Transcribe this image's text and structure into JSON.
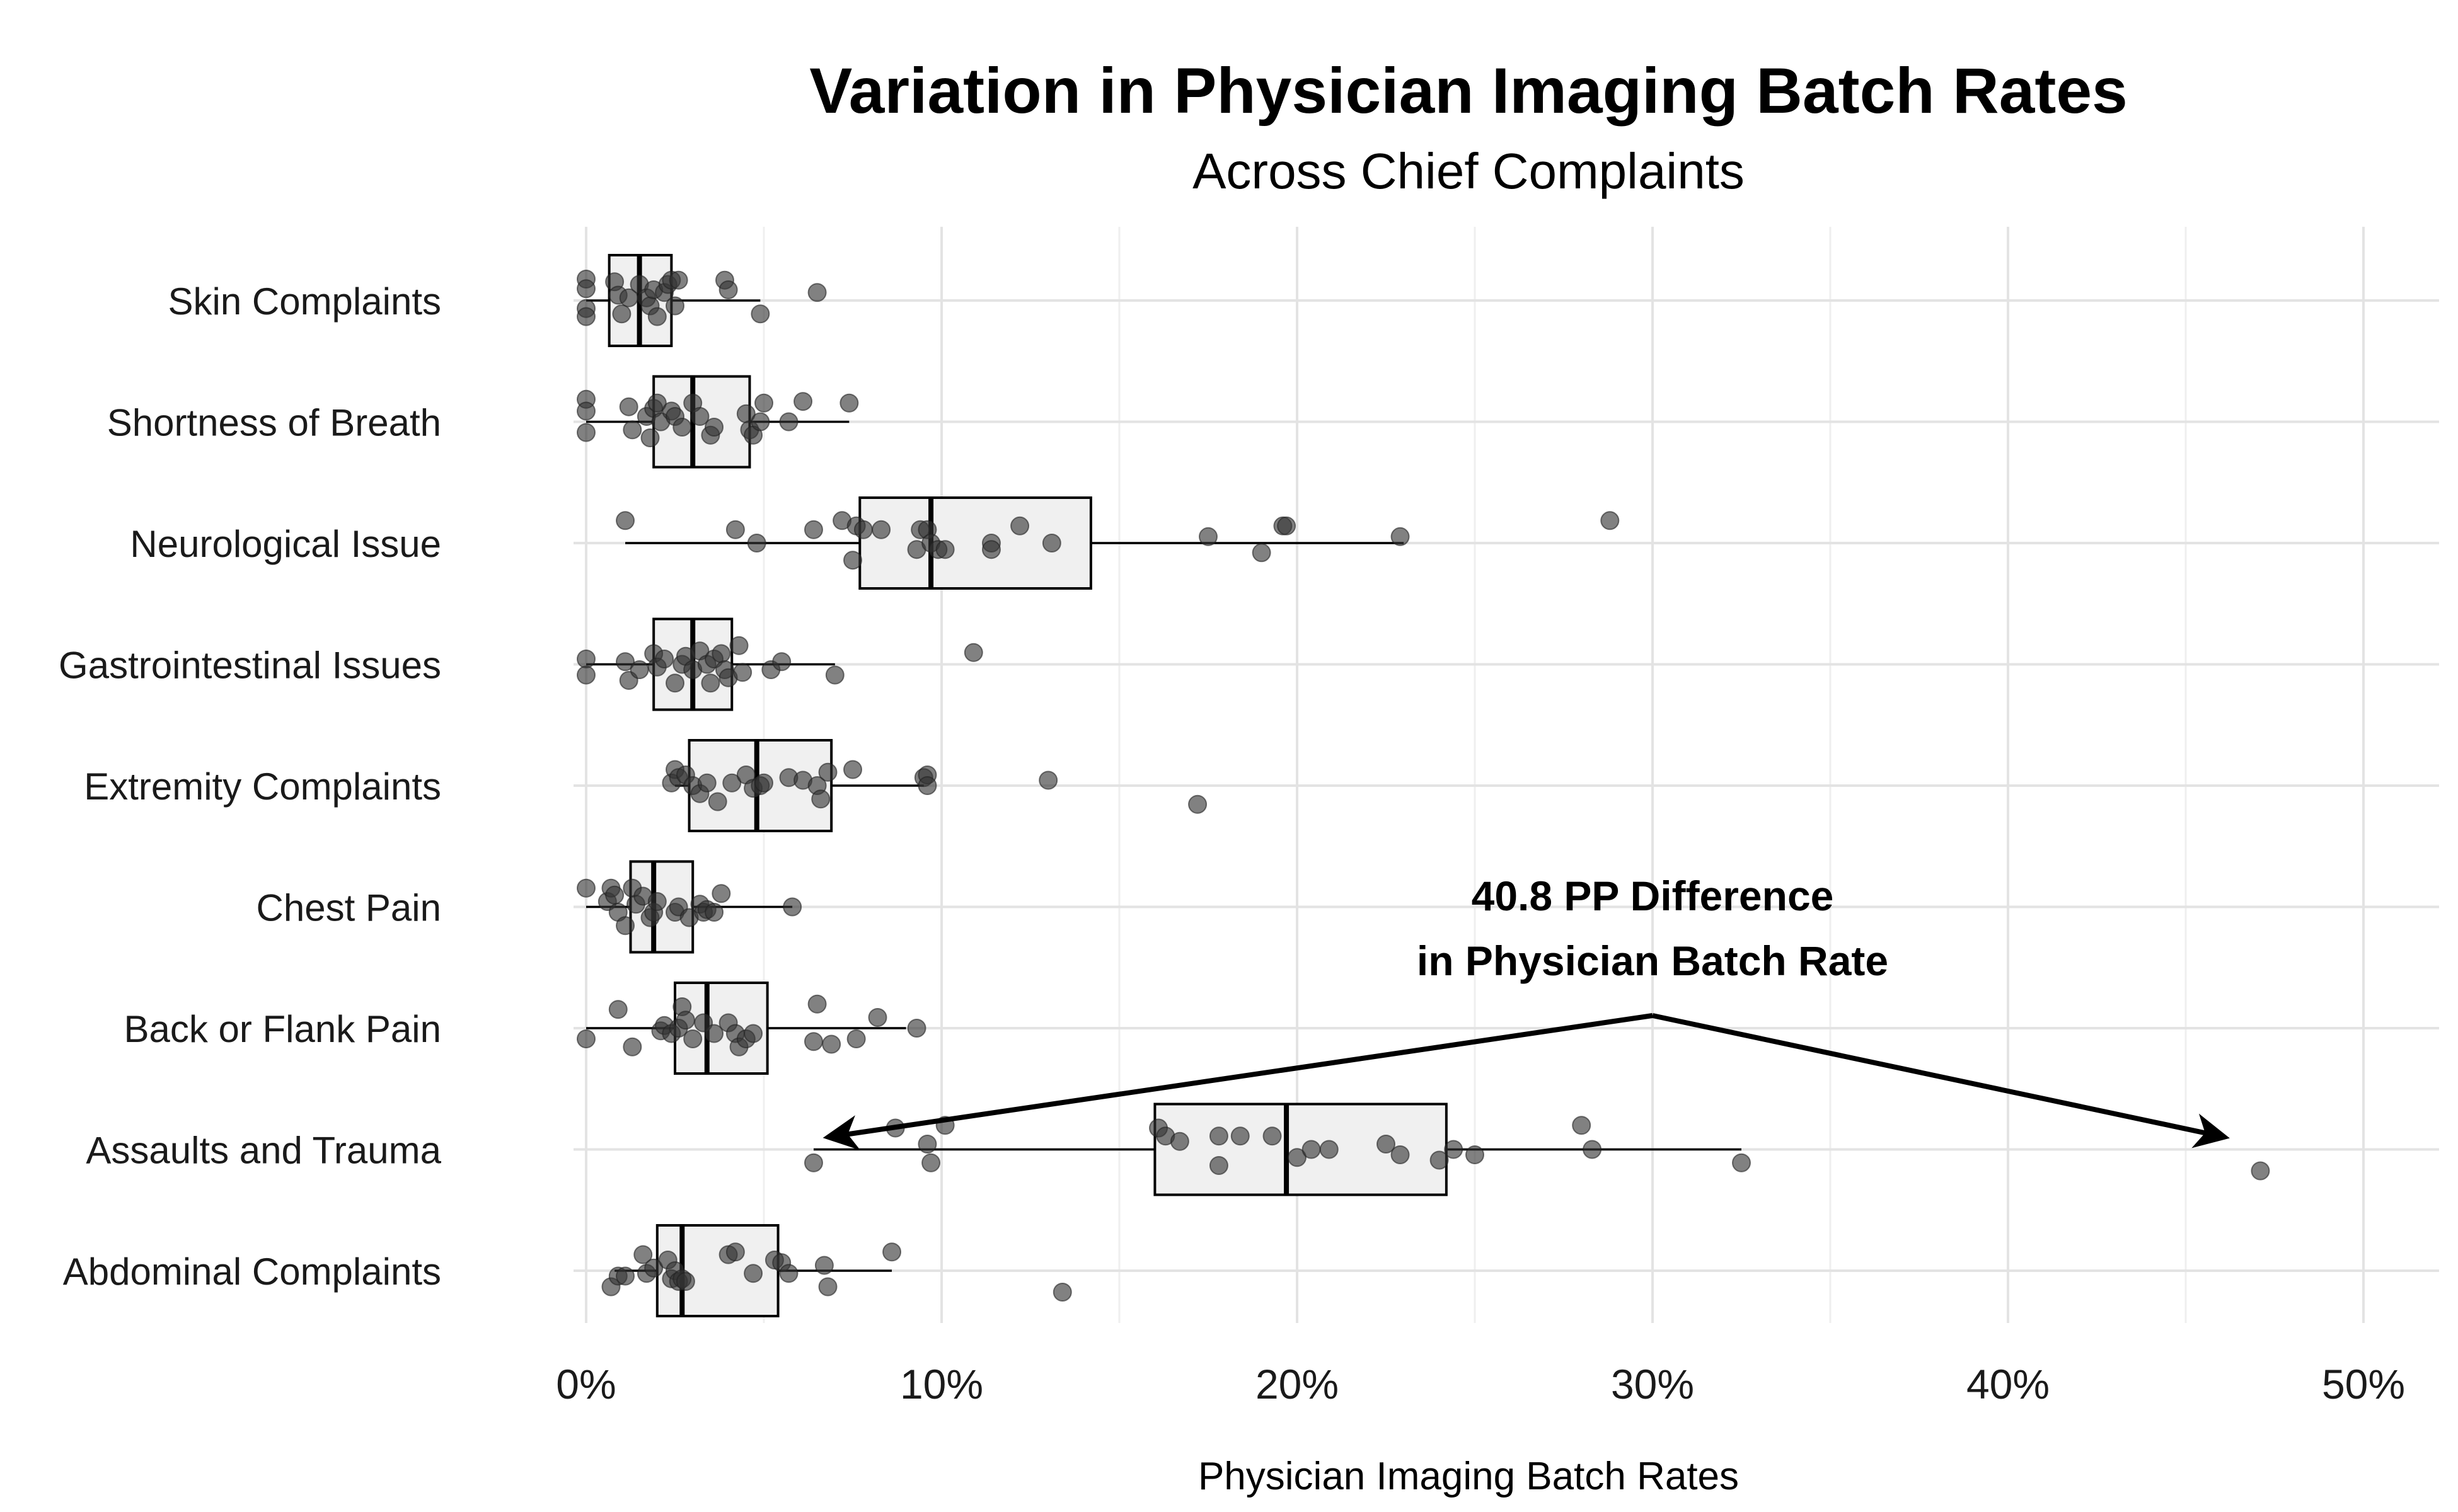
{
  "chart_data": {
    "type": "box",
    "title": "Variation in Physician Imaging Batch Rates",
    "subtitle": "Across Chief Complaints",
    "xlabel": "Physician Imaging Batch Rates",
    "ylabel": "",
    "xlim": [
      -0.035,
      0.52
    ],
    "x_ticks": [
      0,
      0.1,
      0.2,
      0.3,
      0.4,
      0.5
    ],
    "x_tick_labels": [
      "0%",
      "10%",
      "20%",
      "30%",
      "40%",
      "50%"
    ],
    "grid": true,
    "colors": {
      "box_fill": "#f0f0f0",
      "box_stroke": "#000000",
      "point": "#333333",
      "grid": "#e6e6e6"
    },
    "categories": [
      "Skin Complaints",
      "Shortness of Breath",
      "Neurological Issue",
      "Gastrointestinal Issues",
      "Extremity Complaints",
      "Chest Pain",
      "Back or Flank Pain",
      "Assaults and Trauma",
      "Abdominal Complaints"
    ],
    "boxes": [
      {
        "category": "Skin Complaints",
        "min": 0.0,
        "q1": 0.0065,
        "median": 0.015,
        "q3": 0.024,
        "max": 0.049,
        "points": [
          [
            0,
            0.4
          ],
          [
            0,
            -0.15
          ],
          [
            0,
            0.22
          ],
          [
            0,
            -0.3
          ],
          [
            0.008,
            0.35
          ],
          [
            0.009,
            0.1
          ],
          [
            0.01,
            -0.25
          ],
          [
            0.012,
            0.05
          ],
          [
            0.015,
            0.3
          ],
          [
            0.017,
            0.05
          ],
          [
            0.018,
            -0.1
          ],
          [
            0.019,
            0.2
          ],
          [
            0.02,
            -0.3
          ],
          [
            0.022,
            0.15
          ],
          [
            0.023,
            0.3
          ],
          [
            0.024,
            0.38
          ],
          [
            0.025,
            -0.1
          ],
          [
            0.026,
            0.38
          ],
          [
            0.039,
            0.38
          ],
          [
            0.04,
            0.2
          ],
          [
            0.049,
            -0.25
          ],
          [
            0.065,
            0.15
          ]
        ]
      },
      {
        "category": "Shortness of Breath",
        "min": 0.0,
        "q1": 0.019,
        "median": 0.03,
        "q3": 0.046,
        "max": 0.074,
        "points": [
          [
            0,
            0.42
          ],
          [
            0,
            0.2
          ],
          [
            0,
            -0.2
          ],
          [
            0.012,
            0.28
          ],
          [
            0.013,
            -0.15
          ],
          [
            0.017,
            0.1
          ],
          [
            0.018,
            -0.3
          ],
          [
            0.019,
            0.25
          ],
          [
            0.02,
            0.35
          ],
          [
            0.021,
            0.0
          ],
          [
            0.024,
            0.2
          ],
          [
            0.025,
            0.1
          ],
          [
            0.027,
            -0.1
          ],
          [
            0.03,
            0.35
          ],
          [
            0.032,
            0.1
          ],
          [
            0.035,
            -0.25
          ],
          [
            0.036,
            -0.1
          ],
          [
            0.045,
            0.15
          ],
          [
            0.046,
            -0.15
          ],
          [
            0.047,
            -0.25
          ],
          [
            0.049,
            0.0
          ],
          [
            0.05,
            0.35
          ],
          [
            0.057,
            0.0
          ],
          [
            0.061,
            0.38
          ],
          [
            0.074,
            0.35
          ]
        ]
      },
      {
        "category": "Neurological Issue",
        "min": 0.011,
        "q1": 0.077,
        "median": 0.097,
        "q3": 0.142,
        "max": 0.23,
        "points": [
          [
            0.011,
            0.42
          ],
          [
            0.042,
            0.25
          ],
          [
            0.048,
            0.0
          ],
          [
            0.064,
            0.25
          ],
          [
            0.072,
            0.42
          ],
          [
            0.076,
            0.32
          ],
          [
            0.078,
            0.25
          ],
          [
            0.075,
            -0.32
          ],
          [
            0.083,
            0.25
          ],
          [
            0.093,
            -0.12
          ],
          [
            0.094,
            0.25
          ],
          [
            0.096,
            0.25
          ],
          [
            0.097,
            0.0
          ],
          [
            0.099,
            -0.12
          ],
          [
            0.101,
            -0.12
          ],
          [
            0.114,
            0.0
          ],
          [
            0.114,
            -0.12
          ],
          [
            0.122,
            0.32
          ],
          [
            0.131,
            0.0
          ],
          [
            0.175,
            0.12
          ],
          [
            0.19,
            -0.18
          ],
          [
            0.196,
            0.32
          ],
          [
            0.197,
            0.32
          ],
          [
            0.229,
            0.12
          ],
          [
            0.288,
            0.42
          ]
        ]
      },
      {
        "category": "Gastrointestinal Issues",
        "min": 0.0,
        "q1": 0.019,
        "median": 0.03,
        "q3": 0.041,
        "max": 0.07,
        "points": [
          [
            0,
            0.1
          ],
          [
            0,
            -0.2
          ],
          [
            0.011,
            0.05
          ],
          [
            0.012,
            -0.3
          ],
          [
            0.015,
            -0.1
          ],
          [
            0.019,
            0.2
          ],
          [
            0.02,
            -0.05
          ],
          [
            0.022,
            0.1
          ],
          [
            0.025,
            -0.35
          ],
          [
            0.027,
            0.0
          ],
          [
            0.028,
            0.15
          ],
          [
            0.03,
            -0.1
          ],
          [
            0.032,
            0.25
          ],
          [
            0.034,
            0.0
          ],
          [
            0.035,
            -0.35
          ],
          [
            0.036,
            0.1
          ],
          [
            0.038,
            0.2
          ],
          [
            0.039,
            -0.1
          ],
          [
            0.04,
            -0.25
          ],
          [
            0.043,
            0.35
          ],
          [
            0.044,
            -0.15
          ],
          [
            0.052,
            -0.1
          ],
          [
            0.055,
            0.05
          ],
          [
            0.07,
            -0.2
          ],
          [
            0.109,
            0.22
          ]
        ]
      },
      {
        "category": "Extremity Complaints",
        "min": 0.025,
        "q1": 0.029,
        "median": 0.048,
        "q3": 0.069,
        "max": 0.095,
        "points": [
          [
            0.024,
            0.05
          ],
          [
            0.025,
            0.3
          ],
          [
            0.026,
            0.15
          ],
          [
            0.028,
            0.2
          ],
          [
            0.03,
            0.0
          ],
          [
            0.032,
            -0.15
          ],
          [
            0.034,
            0.05
          ],
          [
            0.037,
            -0.3
          ],
          [
            0.041,
            0.05
          ],
          [
            0.045,
            0.2
          ],
          [
            0.047,
            -0.05
          ],
          [
            0.049,
            0.0
          ],
          [
            0.05,
            0.05
          ],
          [
            0.057,
            0.15
          ],
          [
            0.061,
            0.1
          ],
          [
            0.065,
            0.0
          ],
          [
            0.066,
            -0.25
          ],
          [
            0.068,
            0.25
          ],
          [
            0.075,
            0.3
          ],
          [
            0.095,
            0.15
          ],
          [
            0.096,
            0.2
          ],
          [
            0.096,
            0.0
          ],
          [
            0.13,
            0.1
          ],
          [
            0.172,
            -0.35
          ]
        ]
      },
      {
        "category": "Chest Pain",
        "min": 0.0,
        "q1": 0.0125,
        "median": 0.019,
        "q3": 0.03,
        "max": 0.058,
        "points": [
          [
            0,
            0.35
          ],
          [
            0.006,
            0.1
          ],
          [
            0.007,
            0.35
          ],
          [
            0.008,
            0.22
          ],
          [
            0.009,
            -0.1
          ],
          [
            0.011,
            -0.35
          ],
          [
            0.013,
            0.35
          ],
          [
            0.014,
            0.05
          ],
          [
            0.016,
            0.2
          ],
          [
            0.018,
            -0.2
          ],
          [
            0.019,
            -0.1
          ],
          [
            0.02,
            0.1
          ],
          [
            0.025,
            -0.1
          ],
          [
            0.026,
            0.0
          ],
          [
            0.029,
            -0.2
          ],
          [
            0.032,
            0.05
          ],
          [
            0.033,
            -0.1
          ],
          [
            0.034,
            -0.05
          ],
          [
            0.036,
            -0.1
          ],
          [
            0.038,
            0.25
          ],
          [
            0.058,
            0.0
          ]
        ]
      },
      {
        "category": "Back or Flank Pain",
        "min": 0.0,
        "q1": 0.025,
        "median": 0.034,
        "q3": 0.051,
        "max": 0.09,
        "points": [
          [
            0,
            -0.2
          ],
          [
            0.009,
            0.35
          ],
          [
            0.013,
            -0.35
          ],
          [
            0.021,
            -0.05
          ],
          [
            0.022,
            0.05
          ],
          [
            0.024,
            -0.1
          ],
          [
            0.026,
            0.0
          ],
          [
            0.027,
            0.4
          ],
          [
            0.028,
            0.15
          ],
          [
            0.03,
            -0.2
          ],
          [
            0.033,
            0.1
          ],
          [
            0.036,
            -0.1
          ],
          [
            0.04,
            0.1
          ],
          [
            0.042,
            -0.1
          ],
          [
            0.043,
            -0.35
          ],
          [
            0.045,
            -0.2
          ],
          [
            0.047,
            -0.1
          ],
          [
            0.064,
            -0.25
          ],
          [
            0.065,
            0.45
          ],
          [
            0.069,
            -0.3
          ],
          [
            0.076,
            -0.2
          ],
          [
            0.082,
            0.2
          ],
          [
            0.093,
            0.0
          ]
        ]
      },
      {
        "category": "Assaults and Trauma",
        "min": 0.064,
        "q1": 0.16,
        "median": 0.197,
        "q3": 0.242,
        "max": 0.325,
        "points": [
          [
            0.064,
            -0.25
          ],
          [
            0.087,
            0.4
          ],
          [
            0.096,
            0.1
          ],
          [
            0.097,
            -0.25
          ],
          [
            0.101,
            0.45
          ],
          [
            0.161,
            0.4
          ],
          [
            0.163,
            0.25
          ],
          [
            0.167,
            0.15
          ],
          [
            0.178,
            0.25
          ],
          [
            0.178,
            -0.3
          ],
          [
            0.184,
            0.25
          ],
          [
            0.193,
            0.25
          ],
          [
            0.2,
            -0.15
          ],
          [
            0.204,
            0.0
          ],
          [
            0.209,
            0.0
          ],
          [
            0.225,
            0.1
          ],
          [
            0.229,
            -0.1
          ],
          [
            0.24,
            -0.2
          ],
          [
            0.244,
            0.0
          ],
          [
            0.25,
            -0.1
          ],
          [
            0.28,
            0.45
          ],
          [
            0.283,
            0.0
          ],
          [
            0.325,
            -0.25
          ],
          [
            0.471,
            -0.4
          ]
        ]
      },
      {
        "category": "Abdominal Complaints",
        "min": 0.008,
        "q1": 0.02,
        "median": 0.027,
        "q3": 0.054,
        "max": 0.086,
        "points": [
          [
            0.007,
            -0.3
          ],
          [
            0.009,
            -0.1
          ],
          [
            0.011,
            -0.1
          ],
          [
            0.016,
            0.3
          ],
          [
            0.017,
            -0.05
          ],
          [
            0.019,
            0.05
          ],
          [
            0.023,
            0.2
          ],
          [
            0.024,
            -0.15
          ],
          [
            0.025,
            0.0
          ],
          [
            0.026,
            -0.2
          ],
          [
            0.027,
            -0.15
          ],
          [
            0.028,
            -0.2
          ],
          [
            0.04,
            0.3
          ],
          [
            0.042,
            0.35
          ],
          [
            0.047,
            -0.05
          ],
          [
            0.053,
            0.2
          ],
          [
            0.055,
            0.15
          ],
          [
            0.057,
            -0.05
          ],
          [
            0.067,
            0.1
          ],
          [
            0.068,
            -0.3
          ],
          [
            0.086,
            0.35
          ],
          [
            0.134,
            -0.4
          ]
        ]
      }
    ],
    "annotation": {
      "lines": [
        "40.8 PP Difference",
        "in Physician Batch Rate"
      ],
      "apex": [
        0.3,
        "between Back or Flank Pain and Assaults and Trauma"
      ],
      "arrow_left_x": 0.068,
      "arrow_right_x": 0.461
    }
  }
}
